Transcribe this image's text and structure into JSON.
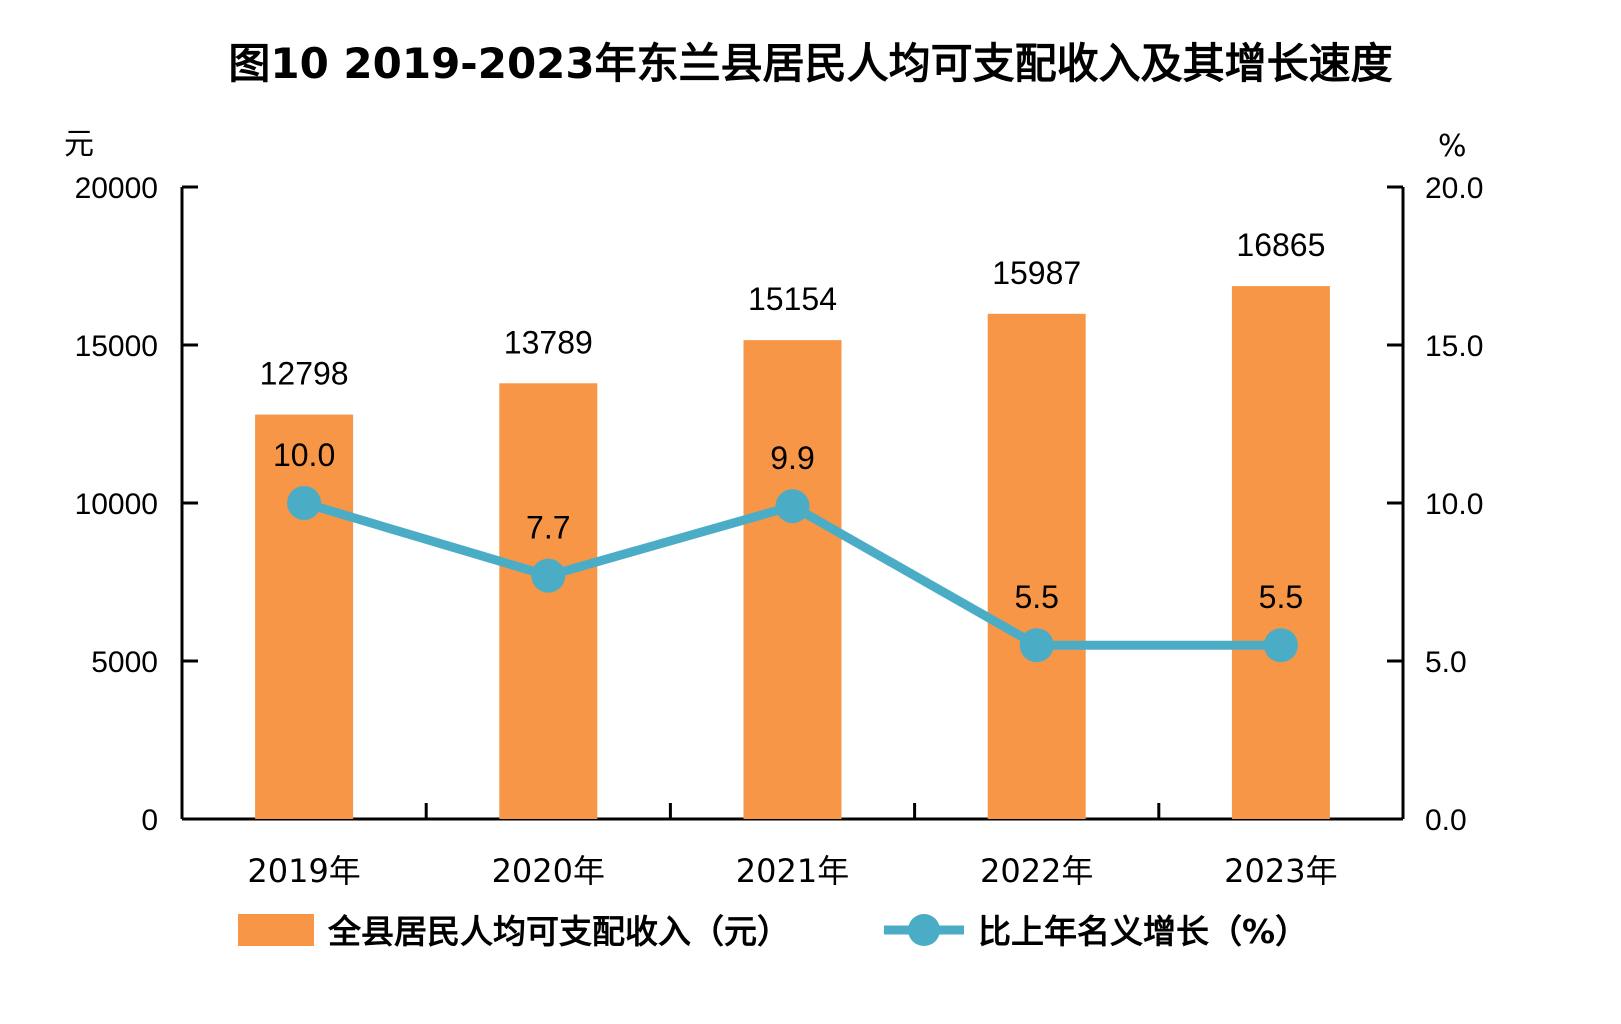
{
  "chart_data": {
    "type": "bar+line",
    "title": "图10   2019-2023年东兰县居民人均可支配收入及其增长速度",
    "categories": [
      "2019年",
      "2020年",
      "2021年",
      "2022年",
      "2023年"
    ],
    "series": [
      {
        "name": "全县居民人均可支配收入（元）",
        "type": "bar",
        "axis": "left",
        "color": "#F79646",
        "values": [
          12798,
          13789,
          15154,
          15987,
          16865
        ],
        "labels": [
          "12798",
          "13789",
          "15154",
          "15987",
          "16865"
        ]
      },
      {
        "name": "比上年名义增长（%）",
        "type": "line",
        "axis": "right",
        "color": "#4BACC6",
        "values": [
          10.0,
          7.7,
          9.9,
          5.5,
          5.5
        ],
        "labels": [
          "10.0",
          "7.7",
          "9.9",
          "5.5",
          "5.5"
        ]
      }
    ],
    "y_left": {
      "unit": "元",
      "range": [
        0,
        20000
      ],
      "ticks": [
        0,
        5000,
        10000,
        15000,
        20000
      ],
      "tick_labels": [
        "0",
        "5000",
        "10000",
        "15000",
        "20000"
      ]
    },
    "y_right": {
      "unit": "%",
      "range": [
        0,
        20
      ],
      "ticks": [
        0,
        5,
        10,
        15,
        20
      ],
      "tick_labels": [
        "0.0",
        "5.0",
        "10.0",
        "15.0",
        "20.0"
      ]
    },
    "grid": false,
    "legend": {
      "position": "bottom",
      "items": [
        "全县居民人均可支配收入（元）",
        "比上年名义增长（%）"
      ]
    }
  }
}
